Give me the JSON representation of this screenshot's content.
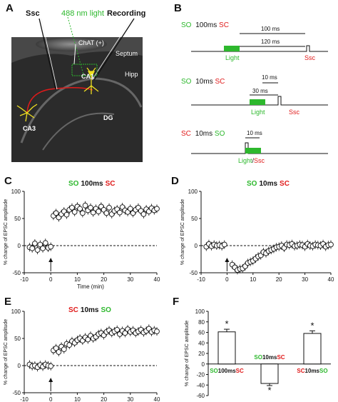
{
  "panels": {
    "A": {
      "letter": "A",
      "labels": {
        "ssc": "Ssc",
        "light": "488 nm light",
        "recording": "Recording",
        "chat": "ChAT (+)",
        "septum": "Septum",
        "hipp": "Hipp",
        "ca1": "CA1",
        "ca3": "CA3",
        "dg": "DG"
      }
    },
    "B": {
      "letter": "B",
      "protocols": [
        {
          "first": "SO",
          "interval": "100ms",
          "second": "SC",
          "dur_a": "100 ms",
          "dur_b": "120 ms",
          "light": "Light",
          "stim": "Ssc"
        },
        {
          "first": "SO",
          "interval": "10ms",
          "second": "SC",
          "dur_a": "10 ms",
          "dur_b": "30 ms",
          "light": "Light",
          "stim": "Ssc"
        },
        {
          "first": "SC",
          "interval": "10ms",
          "second": "SO",
          "dur_a": "10 ms",
          "light_stim_a": "Light",
          "light_stim_sep": "/",
          "light_stim_b": "Ssc"
        }
      ]
    },
    "colors": {
      "green": "#2db82d",
      "red": "#e01a1a",
      "black": "#111111"
    }
  },
  "chart_data": [
    {
      "panel": "C",
      "type": "scatter",
      "title_first": "SO",
      "title_interval": "100ms",
      "title_second": "SC",
      "xlabel": "Time (min)",
      "ylabel": "% change of EPSC amplitude",
      "xlim": [
        -10,
        40
      ],
      "ylim": [
        -50,
        100
      ],
      "xticks": [
        -10,
        0,
        10,
        20,
        30,
        40
      ],
      "yticks": [
        -50,
        0,
        50,
        100
      ],
      "arrow_at": 0,
      "baseline_series": {
        "x": [
          -8,
          -7,
          -6,
          -5,
          -4,
          -3,
          -2,
          -1,
          0
        ],
        "y": [
          -3,
          -5,
          4,
          -8,
          2,
          -5,
          5,
          -4,
          -2
        ]
      },
      "series": {
        "x": [
          1,
          2,
          3,
          4,
          5,
          6,
          7,
          8,
          9,
          10,
          11,
          12,
          13,
          14,
          15,
          16,
          17,
          18,
          19,
          20,
          21,
          22,
          23,
          24,
          25,
          26,
          27,
          28,
          29,
          30,
          31,
          32,
          33,
          34,
          35,
          36,
          37,
          38,
          39,
          40
        ],
        "y": [
          55,
          60,
          52,
          58,
          63,
          57,
          66,
          70,
          62,
          72,
          68,
          60,
          74,
          65,
          70,
          61,
          68,
          63,
          72,
          66,
          60,
          70,
          58,
          64,
          67,
          61,
          71,
          65,
          62,
          68,
          60,
          66,
          70,
          64,
          58,
          67,
          63,
          69,
          65,
          68
        ]
      }
    },
    {
      "panel": "D",
      "type": "scatter",
      "title_first": "SO",
      "title_interval": "10ms",
      "title_second": "SC",
      "ylabel": "% change of EPSC amplitude",
      "xlim": [
        -10,
        40
      ],
      "ylim": [
        -50,
        100
      ],
      "xticks": [
        -10,
        0,
        10,
        20,
        30,
        40
      ],
      "yticks": [
        -50,
        0,
        50,
        100
      ],
      "arrow_at": 0,
      "baseline_series": {
        "x": [
          -8,
          -7,
          -6,
          -5,
          -4,
          -3,
          -2,
          -1
        ],
        "y": [
          -2,
          3,
          -1,
          2,
          0,
          1,
          -1,
          2
        ]
      },
      "series": {
        "x": [
          2,
          3,
          4,
          5,
          6,
          7,
          8,
          9,
          10,
          11,
          12,
          13,
          14,
          15,
          16,
          17,
          18,
          19,
          20,
          21,
          22,
          23,
          24,
          25,
          26,
          27,
          28,
          29,
          30,
          31,
          32,
          33,
          34,
          35,
          36,
          37,
          38,
          39,
          40
        ],
        "y": [
          -35,
          -40,
          -45,
          -43,
          -42,
          -38,
          -32,
          -30,
          -28,
          -24,
          -20,
          -18,
          -12,
          -14,
          -10,
          -8,
          -6,
          -3,
          -2,
          0,
          -4,
          2,
          1,
          3,
          -1,
          0,
          2,
          1,
          -2,
          3,
          0,
          -1,
          2,
          1,
          0,
          3,
          -2,
          1,
          2
        ]
      }
    },
    {
      "panel": "E",
      "type": "scatter",
      "title_first": "SC",
      "title_interval": "10ms",
      "title_second": "SO",
      "ylabel": "% change of EPSC amplitude",
      "xlim": [
        -10,
        40
      ],
      "ylim": [
        -50,
        100
      ],
      "xticks": [
        -10,
        0,
        10,
        20,
        30,
        40
      ],
      "yticks": [
        -50,
        0,
        50,
        100
      ],
      "arrow_at": 0,
      "baseline_series": {
        "x": [
          -8,
          -7,
          -6,
          -5,
          -4,
          -3,
          -2,
          -1,
          0
        ],
        "y": [
          2,
          -1,
          0,
          -3,
          1,
          -2,
          2,
          0,
          -1
        ]
      },
      "series": {
        "x": [
          1,
          2,
          3,
          4,
          5,
          6,
          7,
          8,
          9,
          10,
          11,
          12,
          13,
          14,
          15,
          16,
          17,
          18,
          19,
          20,
          21,
          22,
          23,
          24,
          25,
          26,
          27,
          28,
          29,
          30,
          31,
          32,
          33,
          34,
          35,
          36,
          37,
          38,
          39,
          40
        ],
        "y": [
          28,
          32,
          25,
          35,
          30,
          40,
          38,
          45,
          42,
          47,
          50,
          46,
          52,
          48,
          55,
          50,
          53,
          58,
          60,
          56,
          62,
          65,
          60,
          63,
          66,
          58,
          64,
          60,
          67,
          62,
          65,
          60,
          63,
          66,
          61,
          64,
          68,
          62,
          65,
          63
        ]
      }
    },
    {
      "panel": "F",
      "type": "bar",
      "ylabel": "% change of EPSC amplitude",
      "ylim": [
        -60,
        100
      ],
      "yticks": [
        -60,
        -40,
        -20,
        0,
        20,
        40,
        60,
        80,
        100
      ],
      "categories": [
        {
          "first": "SO",
          "interval": "100ms",
          "second": "SC",
          "value": 61,
          "err": 5,
          "sig": "*"
        },
        {
          "first": "SO",
          "interval": "10ms",
          "second": "SC",
          "value": -37,
          "err": 4,
          "sig": "*"
        },
        {
          "first": "SC",
          "interval": "10ms",
          "second": "SO",
          "value": 58,
          "err": 5,
          "sig": "*"
        }
      ]
    }
  ]
}
